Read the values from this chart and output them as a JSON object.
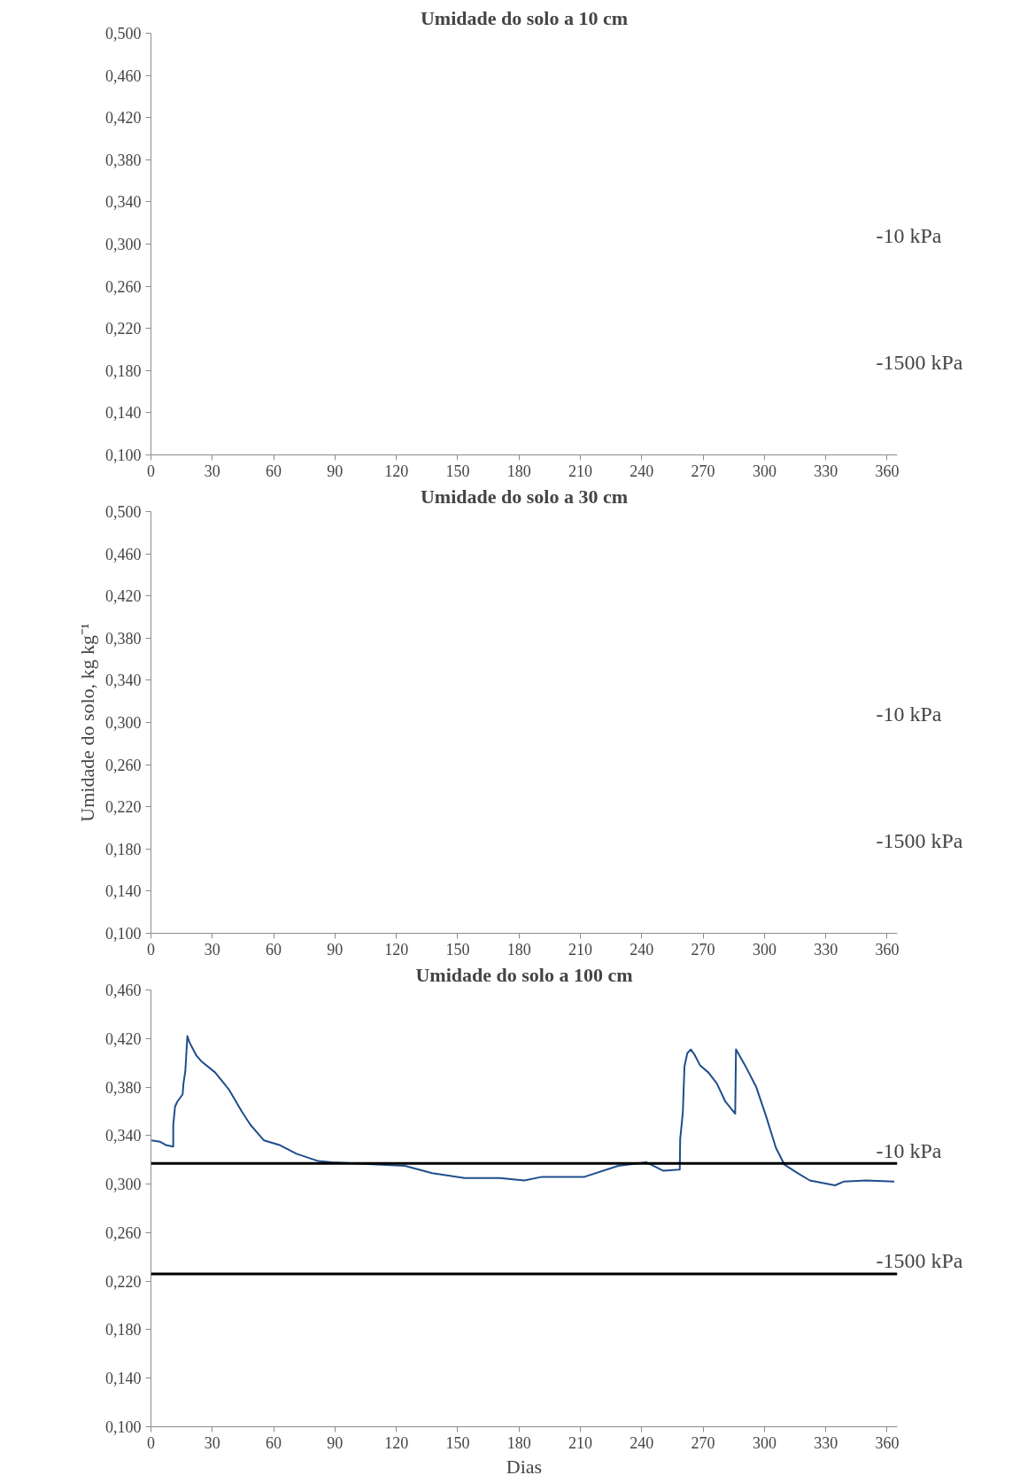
{
  "chart_data": [
    {
      "type": "line",
      "title": "Umidade do solo a 10 cm",
      "xlim": [
        0,
        365
      ],
      "ylim": [
        0.1,
        0.5
      ],
      "xticks": [
        0,
        30,
        60,
        90,
        120,
        150,
        180,
        210,
        240,
        270,
        300,
        330,
        360
      ],
      "yticks": [
        {
          "value": 0.1,
          "label": "0,100"
        },
        {
          "value": 0.14,
          "label": "0,140"
        },
        {
          "value": 0.18,
          "label": "0,180"
        },
        {
          "value": 0.22,
          "label": "0,220"
        },
        {
          "value": 0.26,
          "label": "0,260"
        },
        {
          "value": 0.3,
          "label": "0,300"
        },
        {
          "value": 0.34,
          "label": "0,340"
        },
        {
          "value": 0.38,
          "label": "0,380"
        },
        {
          "value": 0.42,
          "label": "0,420"
        },
        {
          "value": 0.46,
          "label": "0,460"
        },
        {
          "value": 0.5,
          "label": "0,500"
        }
      ],
      "annotations": [
        "-10 kPa",
        "-1500 kPa"
      ],
      "grid": false
    },
    {
      "type": "line",
      "title": "Umidade do solo a 30 cm",
      "ylabel": "Umidade do solo, kg kg⁻¹",
      "xlim": [
        0,
        365
      ],
      "ylim": [
        0.1,
        0.5
      ],
      "xticks": [
        0,
        30,
        60,
        90,
        120,
        150,
        180,
        210,
        240,
        270,
        300,
        330,
        360
      ],
      "yticks": [
        {
          "value": 0.1,
          "label": "0,100"
        },
        {
          "value": 0.14,
          "label": "0,140"
        },
        {
          "value": 0.18,
          "label": "0,180"
        },
        {
          "value": 0.22,
          "label": "0,220"
        },
        {
          "value": 0.26,
          "label": "0,260"
        },
        {
          "value": 0.3,
          "label": "0,300"
        },
        {
          "value": 0.34,
          "label": "0,340"
        },
        {
          "value": 0.38,
          "label": "0,380"
        },
        {
          "value": 0.42,
          "label": "0,420"
        },
        {
          "value": 0.46,
          "label": "0,460"
        },
        {
          "value": 0.5,
          "label": "0,500"
        }
      ],
      "annotations": [
        "-10 kPa",
        "-1500 kPa"
      ],
      "grid": false
    },
    {
      "type": "line",
      "title": "Umidade do solo a 100 cm",
      "xlabel": "Dias",
      "xlim": [
        0,
        365
      ],
      "ylim": [
        0.1,
        0.46
      ],
      "xticks": [
        0,
        30,
        60,
        90,
        120,
        150,
        180,
        210,
        240,
        270,
        300,
        330,
        360
      ],
      "yticks": [
        {
          "value": 0.1,
          "label": "0,100"
        },
        {
          "value": 0.14,
          "label": "0,140"
        },
        {
          "value": 0.18,
          "label": "0,180"
        },
        {
          "value": 0.22,
          "label": "0,220"
        },
        {
          "value": 0.26,
          "label": "0,260"
        },
        {
          "value": 0.3,
          "label": "0,300"
        },
        {
          "value": 0.34,
          "label": "0,340"
        },
        {
          "value": 0.38,
          "label": "0,380"
        },
        {
          "value": 0.42,
          "label": "0,420"
        },
        {
          "value": 0.46,
          "label": "0,460"
        }
      ],
      "grid": false,
      "marker": "none",
      "line_style": "solid",
      "ref_lines": [
        {
          "axis": "y",
          "value": 0.317,
          "label": "-10 kPa",
          "color": "#000000"
        },
        {
          "axis": "y",
          "value": 0.226,
          "label": "-1500 kPa",
          "color": "#000000"
        }
      ],
      "series": [
        {
          "color": "#1f4e8c",
          "x": [
            0.3,
            4.3,
            7.6,
            10.9,
            10.9,
            11.8,
            12.9,
            15.5,
            15.9,
            16.8,
            17.8,
            18.8,
            22.2,
            24.8,
            31.4,
            38.1,
            44.7,
            48.6,
            55.3,
            63.2,
            71.2,
            81.8,
            88.4,
            124.2,
            137.5,
            153.4,
            170.6,
            182.6,
            191.3,
            212,
            228.5,
            242.2,
            250.6,
            258.6,
            258.8,
            260.1,
            260.9,
            262.3,
            264,
            265.7,
            268.5,
            272.6,
            276.7,
            280.9,
            285.7,
            286.1,
            290.5,
            296,
            300.8,
            305.6,
            309.8,
            315.3,
            322.2,
            334.5,
            338.7,
            349.7,
            363.5
          ],
          "values": [
            0.336,
            0.335,
            0.332,
            0.331,
            0.349,
            0.364,
            0.368,
            0.374,
            0.383,
            0.393,
            0.422,
            0.417,
            0.406,
            0.401,
            0.392,
            0.378,
            0.359,
            0.349,
            0.336,
            0.332,
            0.325,
            0.319,
            0.318,
            0.315,
            0.309,
            0.305,
            0.305,
            0.303,
            0.306,
            0.306,
            0.315,
            0.318,
            0.311,
            0.312,
            0.337,
            0.359,
            0.397,
            0.408,
            0.411,
            0.407,
            0.398,
            0.392,
            0.383,
            0.368,
            0.358,
            0.411,
            0.398,
            0.38,
            0.356,
            0.33,
            0.316,
            0.31,
            0.303,
            0.299,
            0.302,
            0.303,
            0.302
          ]
        }
      ]
    }
  ]
}
